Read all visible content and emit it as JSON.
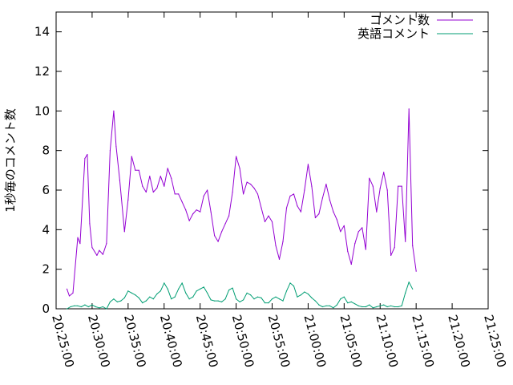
{
  "chart_data": {
    "type": "line",
    "ylabel": "1秒毎のコメント数",
    "xlim": [
      "20:25:00",
      "21:25:00"
    ],
    "ylim": [
      0,
      15
    ],
    "xticks": [
      "20:25:00",
      "20:30:00",
      "20:35:00",
      "20:40:00",
      "20:45:00",
      "20:50:00",
      "20:55:00",
      "21:00:00",
      "21:05:00",
      "21:10:00",
      "21:15:00",
      "21:20:00",
      "21:25:00"
    ],
    "yticks": [
      "0",
      "2",
      "4",
      "6",
      "8",
      "10",
      "12",
      "14"
    ],
    "grid": false,
    "legend_position": "top-right",
    "series": [
      {
        "name": "コメント数",
        "color": "#9400d3",
        "points": [
          [
            "20:26:30",
            1.0
          ],
          [
            "20:26:50",
            0.65
          ],
          [
            "20:27:20",
            0.8
          ],
          [
            "20:28:00",
            3.6
          ],
          [
            "20:28:20",
            3.3
          ],
          [
            "20:29:00",
            7.6
          ],
          [
            "20:29:20",
            7.8
          ],
          [
            "20:29:40",
            4.3
          ],
          [
            "20:30:00",
            3.1
          ],
          [
            "20:30:40",
            2.7
          ],
          [
            "20:31:00",
            2.95
          ],
          [
            "20:31:30",
            2.75
          ],
          [
            "20:32:00",
            3.3
          ],
          [
            "20:32:30",
            8.0
          ],
          [
            "20:33:00",
            10.0
          ],
          [
            "20:33:20",
            8.2
          ],
          [
            "20:33:50",
            6.5
          ],
          [
            "20:34:30",
            3.9
          ],
          [
            "20:35:00",
            5.5
          ],
          [
            "20:35:30",
            7.7
          ],
          [
            "20:36:00",
            7.0
          ],
          [
            "20:36:30",
            7.0
          ],
          [
            "20:37:00",
            6.2
          ],
          [
            "20:37:30",
            5.9
          ],
          [
            "20:38:00",
            6.7
          ],
          [
            "20:38:30",
            5.9
          ],
          [
            "20:39:00",
            6.1
          ],
          [
            "20:39:30",
            6.7
          ],
          [
            "20:40:00",
            6.2
          ],
          [
            "20:40:30",
            7.1
          ],
          [
            "20:41:00",
            6.6
          ],
          [
            "20:41:30",
            5.8
          ],
          [
            "20:42:00",
            5.8
          ],
          [
            "20:42:30",
            5.4
          ],
          [
            "20:43:00",
            5.0
          ],
          [
            "20:43:30",
            4.45
          ],
          [
            "20:44:00",
            4.8
          ],
          [
            "20:44:30",
            5.0
          ],
          [
            "20:45:00",
            4.9
          ],
          [
            "20:45:30",
            5.7
          ],
          [
            "20:46:00",
            6.0
          ],
          [
            "20:46:30",
            4.9
          ],
          [
            "20:47:00",
            3.7
          ],
          [
            "20:47:30",
            3.4
          ],
          [
            "20:48:00",
            3.9
          ],
          [
            "20:48:30",
            4.3
          ],
          [
            "20:49:00",
            4.7
          ],
          [
            "20:49:30",
            5.9
          ],
          [
            "20:50:00",
            7.7
          ],
          [
            "20:50:30",
            7.1
          ],
          [
            "20:51:00",
            5.8
          ],
          [
            "20:51:30",
            6.4
          ],
          [
            "20:52:00",
            6.3
          ],
          [
            "20:52:30",
            6.1
          ],
          [
            "20:53:00",
            5.8
          ],
          [
            "20:53:30",
            5.1
          ],
          [
            "20:54:00",
            4.4
          ],
          [
            "20:54:30",
            4.7
          ],
          [
            "20:55:00",
            4.4
          ],
          [
            "20:55:30",
            3.2
          ],
          [
            "20:56:00",
            2.5
          ],
          [
            "20:56:30",
            3.4
          ],
          [
            "20:57:00",
            5.1
          ],
          [
            "20:57:30",
            5.7
          ],
          [
            "20:58:00",
            5.8
          ],
          [
            "20:58:30",
            5.2
          ],
          [
            "20:59:00",
            4.9
          ],
          [
            "20:59:30",
            6.0
          ],
          [
            "21:00:00",
            7.3
          ],
          [
            "21:00:30",
            6.2
          ],
          [
            "21:01:00",
            4.6
          ],
          [
            "21:01:30",
            4.8
          ],
          [
            "21:02:00",
            5.6
          ],
          [
            "21:02:30",
            6.3
          ],
          [
            "21:03:00",
            5.5
          ],
          [
            "21:03:30",
            4.9
          ],
          [
            "21:04:00",
            4.5
          ],
          [
            "21:04:30",
            3.9
          ],
          [
            "21:05:00",
            4.2
          ],
          [
            "21:05:30",
            2.9
          ],
          [
            "21:06:00",
            2.25
          ],
          [
            "21:06:30",
            3.3
          ],
          [
            "21:07:00",
            3.9
          ],
          [
            "21:07:30",
            4.1
          ],
          [
            "21:08:00",
            3.0
          ],
          [
            "21:08:30",
            6.6
          ],
          [
            "21:09:00",
            6.2
          ],
          [
            "21:09:30",
            4.9
          ],
          [
            "21:10:00",
            6.1
          ],
          [
            "21:10:30",
            6.9
          ],
          [
            "21:11:00",
            6.0
          ],
          [
            "21:11:30",
            2.7
          ],
          [
            "21:12:00",
            3.1
          ],
          [
            "21:12:30",
            6.2
          ],
          [
            "21:13:00",
            6.2
          ],
          [
            "21:13:30",
            3.4
          ],
          [
            "21:14:00",
            10.1
          ],
          [
            "21:14:30",
            3.2
          ],
          [
            "21:15:00",
            1.9
          ]
        ]
      },
      {
        "name": "英語コメント",
        "color": "#009e73",
        "points": [
          [
            "20:26:30",
            0.0
          ],
          [
            "20:27:00",
            0.1
          ],
          [
            "20:27:30",
            0.15
          ],
          [
            "20:28:00",
            0.15
          ],
          [
            "20:28:30",
            0.1
          ],
          [
            "20:29:00",
            0.2
          ],
          [
            "20:29:30",
            0.1
          ],
          [
            "20:30:00",
            0.2
          ],
          [
            "20:30:30",
            0.1
          ],
          [
            "20:31:00",
            0.05
          ],
          [
            "20:31:30",
            0.1
          ],
          [
            "20:32:00",
            0.0
          ],
          [
            "20:32:30",
            0.35
          ],
          [
            "20:33:00",
            0.5
          ],
          [
            "20:33:30",
            0.35
          ],
          [
            "20:34:00",
            0.4
          ],
          [
            "20:34:30",
            0.55
          ],
          [
            "20:35:00",
            0.9
          ],
          [
            "20:35:30",
            0.8
          ],
          [
            "20:36:00",
            0.7
          ],
          [
            "20:36:30",
            0.55
          ],
          [
            "20:37:00",
            0.3
          ],
          [
            "20:37:30",
            0.4
          ],
          [
            "20:38:00",
            0.6
          ],
          [
            "20:38:30",
            0.5
          ],
          [
            "20:39:00",
            0.75
          ],
          [
            "20:39:30",
            0.9
          ],
          [
            "20:40:00",
            1.3
          ],
          [
            "20:40:30",
            1.0
          ],
          [
            "20:41:00",
            0.5
          ],
          [
            "20:41:30",
            0.6
          ],
          [
            "20:42:00",
            1.0
          ],
          [
            "20:42:30",
            1.3
          ],
          [
            "20:43:00",
            0.8
          ],
          [
            "20:43:30",
            0.5
          ],
          [
            "20:44:00",
            0.6
          ],
          [
            "20:44:30",
            0.9
          ],
          [
            "20:45:00",
            1.0
          ],
          [
            "20:45:30",
            1.1
          ],
          [
            "20:46:00",
            0.8
          ],
          [
            "20:46:30",
            0.45
          ],
          [
            "20:47:00",
            0.4
          ],
          [
            "20:47:30",
            0.4
          ],
          [
            "20:48:00",
            0.35
          ],
          [
            "20:48:30",
            0.5
          ],
          [
            "20:49:00",
            0.95
          ],
          [
            "20:49:30",
            1.05
          ],
          [
            "20:50:00",
            0.5
          ],
          [
            "20:50:30",
            0.35
          ],
          [
            "20:51:00",
            0.45
          ],
          [
            "20:51:30",
            0.8
          ],
          [
            "20:52:00",
            0.7
          ],
          [
            "20:52:30",
            0.5
          ],
          [
            "20:53:00",
            0.6
          ],
          [
            "20:53:30",
            0.55
          ],
          [
            "20:54:00",
            0.3
          ],
          [
            "20:54:30",
            0.3
          ],
          [
            "20:55:00",
            0.5
          ],
          [
            "20:55:30",
            0.6
          ],
          [
            "20:56:00",
            0.5
          ],
          [
            "20:56:30",
            0.4
          ],
          [
            "20:57:00",
            0.9
          ],
          [
            "20:57:30",
            1.3
          ],
          [
            "20:58:00",
            1.15
          ],
          [
            "20:58:30",
            0.6
          ],
          [
            "20:59:00",
            0.7
          ],
          [
            "20:59:30",
            0.85
          ],
          [
            "21:00:00",
            0.75
          ],
          [
            "21:00:30",
            0.55
          ],
          [
            "21:01:00",
            0.4
          ],
          [
            "21:01:30",
            0.2
          ],
          [
            "21:02:00",
            0.1
          ],
          [
            "21:02:30",
            0.15
          ],
          [
            "21:03:00",
            0.15
          ],
          [
            "21:03:30",
            0.05
          ],
          [
            "21:04:00",
            0.2
          ],
          [
            "21:04:30",
            0.5
          ],
          [
            "21:05:00",
            0.6
          ],
          [
            "21:05:30",
            0.3
          ],
          [
            "21:06:00",
            0.35
          ],
          [
            "21:06:30",
            0.25
          ],
          [
            "21:07:00",
            0.15
          ],
          [
            "21:07:30",
            0.1
          ],
          [
            "21:08:00",
            0.1
          ],
          [
            "21:08:30",
            0.2
          ],
          [
            "21:09:00",
            0.05
          ],
          [
            "21:09:30",
            0.1
          ],
          [
            "21:10:00",
            0.15
          ],
          [
            "21:10:30",
            0.2
          ],
          [
            "21:11:00",
            0.1
          ],
          [
            "21:11:30",
            0.15
          ],
          [
            "21:12:00",
            0.1
          ],
          [
            "21:12:30",
            0.1
          ],
          [
            "21:13:00",
            0.15
          ],
          [
            "21:13:30",
            0.8
          ],
          [
            "21:14:00",
            1.35
          ],
          [
            "21:14:30",
            1.0
          ]
        ]
      }
    ]
  }
}
